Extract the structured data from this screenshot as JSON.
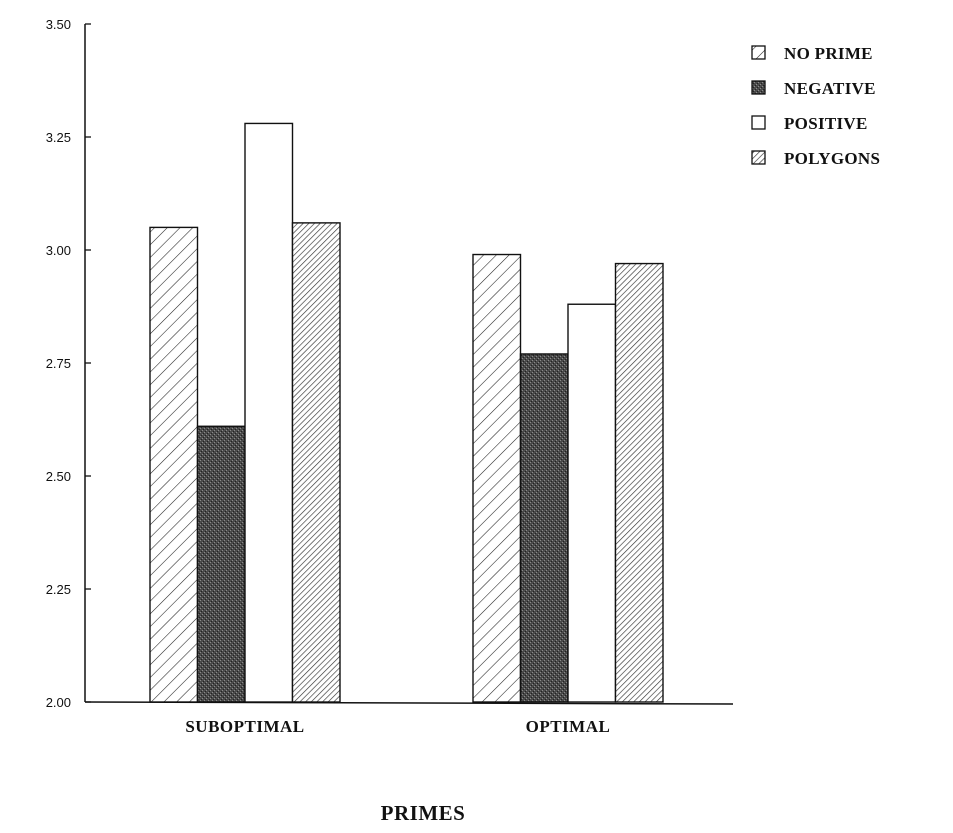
{
  "chart_data": {
    "type": "bar",
    "categories": [
      "SUBOPTIMAL",
      "OPTIMAL"
    ],
    "series": [
      {
        "name": "NO PRIME",
        "values": [
          3.05,
          2.99
        ],
        "pattern": "hatch-sparse"
      },
      {
        "name": "NEGATIVE",
        "values": [
          2.61,
          2.77
        ],
        "pattern": "dark-stipple"
      },
      {
        "name": "POSITIVE",
        "values": [
          3.28,
          2.88
        ],
        "pattern": "white"
      },
      {
        "name": "POLYGONS",
        "values": [
          3.06,
          2.97
        ],
        "pattern": "hatch-dense"
      }
    ],
    "xlabel": "PRIMES",
    "ylabel": "",
    "ylim": [
      2.0,
      3.5
    ],
    "yticks": [
      "2.00",
      "2.25",
      "2.50",
      "2.75",
      "3.00",
      "3.25",
      "3.50"
    ],
    "legend_position": "top-right",
    "grid": false
  }
}
